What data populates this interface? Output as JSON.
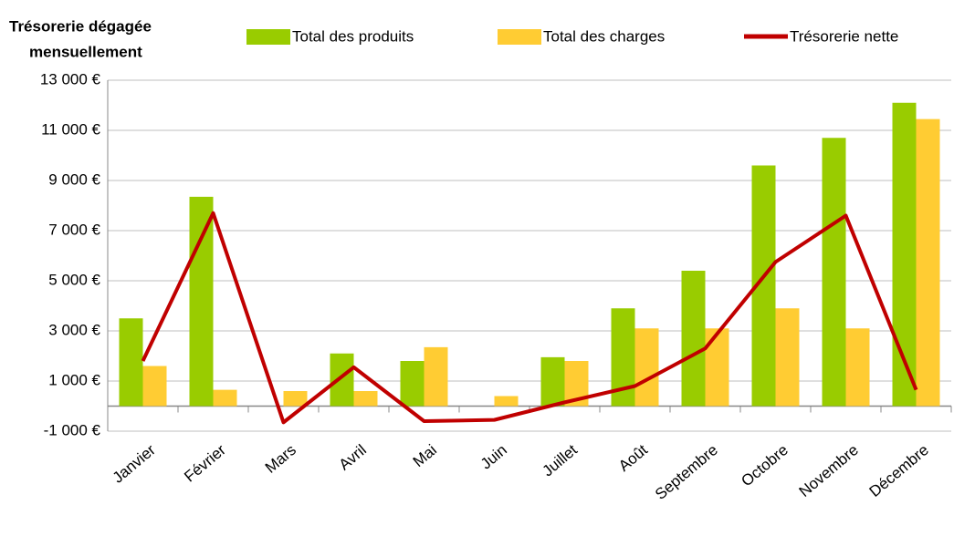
{
  "chart_data": {
    "type": "bar_line",
    "title": [
      "Trésorerie dégagée",
      "mensuellement"
    ],
    "categories": [
      "Janvier",
      "Février",
      "Mars",
      "Avril",
      "Mai",
      "Juin",
      "Juillet",
      "Août",
      "Septembre",
      "Octobre",
      "Novembre",
      "Décembre"
    ],
    "series": [
      {
        "name": "Total des produits",
        "type": "bar",
        "color": "#99cc00",
        "values": [
          3500,
          8350,
          0,
          2100,
          1800,
          0,
          1950,
          3900,
          5400,
          9600,
          10700,
          12100
        ]
      },
      {
        "name": "Total des charges",
        "type": "bar",
        "color": "#ffcc33",
        "values": [
          1600,
          650,
          600,
          600,
          2350,
          400,
          1800,
          3100,
          3100,
          3900,
          3100,
          11450
        ]
      },
      {
        "name": "Trésorerie nette",
        "type": "line",
        "color": "#c00000",
        "values": [
          1800,
          7700,
          -650,
          1550,
          -600,
          -550,
          150,
          800,
          2300,
          5750,
          7600,
          650
        ]
      }
    ],
    "ylim": [
      -1000,
      13000
    ],
    "yticks": [
      {
        "value": -1000,
        "label": "-1 000 €"
      },
      {
        "value": 1000,
        "label": "1 000 €"
      },
      {
        "value": 3000,
        "label": "3 000 €"
      },
      {
        "value": 5000,
        "label": "5 000 €"
      },
      {
        "value": 7000,
        "label": "7 000 €"
      },
      {
        "value": 9000,
        "label": "9 000 €"
      },
      {
        "value": 11000,
        "label": "11 000 €"
      },
      {
        "value": 13000,
        "label": "13 000 €"
      }
    ],
    "negative_tick_color": "#e00000",
    "grid": true,
    "legend": "top"
  }
}
